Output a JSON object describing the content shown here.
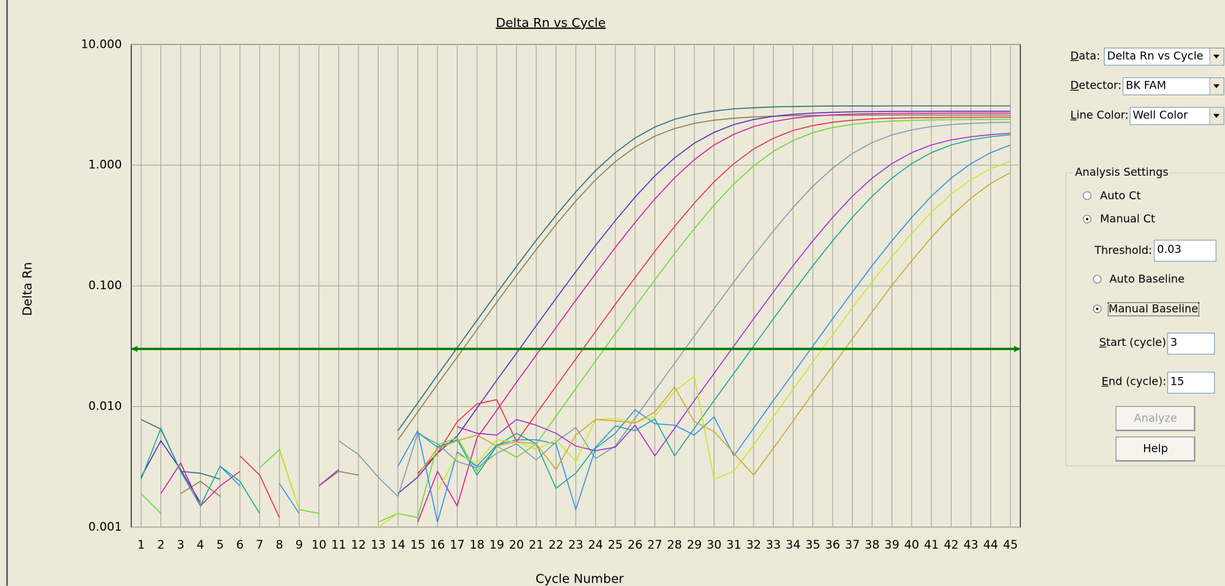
{
  "chart_data": {
    "type": "line",
    "title": "Delta Rn vs Cycle",
    "x_label": "Cycle Number",
    "y_label": "Delta Rn",
    "log_y": true,
    "grid": true,
    "x": [
      1,
      2,
      3,
      4,
      5,
      6,
      7,
      8,
      9,
      10,
      11,
      12,
      13,
      14,
      15,
      16,
      17,
      18,
      19,
      20,
      21,
      22,
      23,
      24,
      25,
      26,
      27,
      28,
      29,
      30,
      31,
      32,
      33,
      34,
      35,
      36,
      37,
      38,
      39,
      40,
      41,
      42,
      43,
      44,
      45
    ],
    "xlim": [
      0.5,
      45.5
    ],
    "xticks": [
      1,
      2,
      3,
      4,
      5,
      6,
      7,
      8,
      9,
      10,
      11,
      12,
      13,
      14,
      15,
      16,
      17,
      18,
      19,
      20,
      21,
      22,
      23,
      24,
      25,
      26,
      27,
      28,
      29,
      30,
      31,
      32,
      33,
      34,
      35,
      36,
      37,
      38,
      39,
      40,
      41,
      42,
      43,
      44,
      45
    ],
    "ylim": [
      0.001,
      10
    ],
    "yticks": [
      0.001,
      {
        "value": 0.01,
        "label": "0.010"
      },
      {
        "value": 0.1,
        "label": "0.100"
      },
      {
        "value": 1,
        "label": "1.000"
      },
      {
        "value": 10,
        "label": "10.000"
      }
    ],
    "threshold_color": "#008000",
    "series": [
      {
        "color": "#2e6b7e",
        "values": [
          0.0078,
          0.0065,
          0.0029,
          0.0028,
          0.0025,
          null,
          null,
          null,
          null,
          null,
          null,
          null,
          null,
          0.0063,
          0.0107,
          0.0182,
          0.0307,
          0.0518,
          0.0871,
          0.145,
          0.239,
          0.384,
          0.601,
          0.902,
          1.27,
          1.68,
          2.07,
          2.4,
          2.64,
          2.81,
          2.93,
          2.99,
          3.04,
          3.06,
          3.08,
          3.09,
          3.09,
          3.09,
          3.1,
          3.1,
          3.1,
          3.1,
          3.1,
          3.1,
          3.1
        ]
      },
      {
        "color": "#8c7d55",
        "values": [
          null,
          null,
          0.0019,
          0.0024,
          0.0018,
          null,
          null,
          null,
          null,
          0.0022,
          0.0029,
          0.0027,
          null,
          0.0053,
          0.009,
          0.0153,
          0.0257,
          0.0434,
          0.0731,
          0.122,
          0.2,
          0.322,
          0.504,
          0.757,
          1.07,
          1.41,
          1.74,
          2.01,
          2.22,
          2.36,
          2.45,
          2.51,
          2.55,
          2.57,
          2.58,
          2.59,
          2.59,
          2.6,
          2.6,
          2.6,
          2.6,
          2.6,
          2.6,
          2.6,
          2.6
        ]
      },
      {
        "color": "#5a2dc8",
        "values": [
          0.0026,
          0.0052,
          0.003,
          0.0016,
          null,
          null,
          null,
          null,
          null,
          null,
          null,
          null,
          null,
          0.0019,
          0.0026,
          0.0041,
          0.0057,
          0.0097,
          0.0165,
          0.0277,
          0.0468,
          0.0787,
          0.131,
          0.216,
          0.347,
          0.543,
          0.815,
          1.15,
          1.52,
          1.87,
          2.17,
          2.39,
          2.54,
          2.64,
          2.7,
          2.74,
          2.77,
          2.78,
          2.79,
          2.79,
          2.79,
          2.8,
          2.8,
          2.8,
          2.8
        ]
      },
      {
        "color": "#d020a0",
        "values": [
          null,
          0.0019,
          0.0034,
          0.0015,
          0.0022,
          0.0029,
          null,
          null,
          null,
          null,
          null,
          null,
          null,
          null,
          0.0011,
          0.0029,
          0.0015,
          0.0055,
          0.0093,
          0.0159,
          0.0267,
          0.0451,
          0.0759,
          0.126,
          0.208,
          0.335,
          0.524,
          0.786,
          1.11,
          1.47,
          1.8,
          2.09,
          2.3,
          2.45,
          2.55,
          2.61,
          2.65,
          2.67,
          2.68,
          2.69,
          2.69,
          2.7,
          2.7,
          2.7,
          2.7
        ]
      },
      {
        "color": "#e8304a",
        "values": [
          null,
          null,
          null,
          null,
          null,
          0.0039,
          0.0027,
          0.0012,
          null,
          null,
          null,
          null,
          null,
          null,
          0.0028,
          0.0041,
          0.0075,
          0.0105,
          0.0114,
          0.0051,
          0.0087,
          0.0147,
          0.0248,
          0.0418,
          0.0703,
          0.117,
          0.193,
          0.31,
          0.485,
          0.728,
          1.03,
          1.36,
          1.67,
          1.94,
          2.13,
          2.27,
          2.36,
          2.42,
          2.45,
          2.47,
          2.48,
          2.49,
          2.49,
          2.5,
          2.5
        ]
      },
      {
        "color": "#6ad838",
        "values": [
          0.0019,
          0.0013,
          null,
          null,
          null,
          null,
          0.0031,
          0.0044,
          0.0014,
          0.0013,
          null,
          null,
          0.0011,
          0.0013,
          0.0012,
          0.0048,
          0.0055,
          0.0029,
          0.0047,
          0.0038,
          0.0049,
          0.0083,
          0.0141,
          0.0238,
          0.0401,
          0.0674,
          0.112,
          0.185,
          0.298,
          0.466,
          0.699,
          0.986,
          1.3,
          1.6,
          1.86,
          2.05,
          2.18,
          2.27,
          2.32,
          2.35,
          2.37,
          2.38,
          2.39,
          2.39,
          2.4
        ]
      },
      {
        "color": "#7f9cb0",
        "values": [
          null,
          null,
          null,
          null,
          null,
          null,
          null,
          null,
          null,
          null,
          0.0052,
          0.004,
          0.0026,
          0.0018,
          0.006,
          0.0049,
          0.0035,
          0.0031,
          0.0041,
          0.0049,
          0.0036,
          0.0051,
          0.0067,
          0.0037,
          0.0047,
          0.008,
          0.0135,
          0.0228,
          0.0384,
          0.0646,
          0.108,
          0.177,
          0.285,
          0.446,
          0.669,
          0.945,
          1.25,
          1.54,
          1.78,
          1.96,
          2.09,
          2.17,
          2.22,
          2.25,
          2.27
        ]
      },
      {
        "color": "#a030d0",
        "values": [
          null,
          null,
          null,
          null,
          null,
          null,
          null,
          null,
          null,
          0.0022,
          0.003,
          null,
          null,
          null,
          null,
          null,
          0.0068,
          0.006,
          0.0058,
          0.0078,
          0.007,
          0.006,
          0.0047,
          0.0043,
          0.0046,
          0.007,
          0.0039,
          0.0066,
          0.0112,
          0.0188,
          0.0317,
          0.0533,
          0.0889,
          0.147,
          0.236,
          0.369,
          0.553,
          0.781,
          1.03,
          1.27,
          1.47,
          1.62,
          1.72,
          1.79,
          1.84
        ]
      },
      {
        "color": "#18a898",
        "values": [
          0.0025,
          0.0066,
          0.0029,
          0.0015,
          0.0032,
          0.0024,
          0.0013,
          null,
          null,
          null,
          null,
          null,
          null,
          null,
          0.0061,
          0.0046,
          0.0053,
          0.0027,
          0.0047,
          0.006,
          0.0049,
          0.0021,
          0.0028,
          0.0046,
          0.0069,
          0.0063,
          0.0079,
          0.0039,
          0.0066,
          0.0112,
          0.0188,
          0.0317,
          0.0533,
          0.0889,
          0.147,
          0.236,
          0.369,
          0.553,
          0.781,
          1.03,
          1.27,
          1.47,
          1.62,
          1.72,
          1.79
        ]
      },
      {
        "color": "#3090e8",
        "values": [
          null,
          null,
          null,
          null,
          0.0032,
          0.0022,
          null,
          0.0023,
          0.0013,
          null,
          null,
          null,
          null,
          0.0032,
          0.0063,
          0.0011,
          0.0042,
          0.0032,
          0.0048,
          0.0053,
          0.0053,
          0.0049,
          0.0014,
          0.0045,
          0.006,
          0.0094,
          0.0072,
          0.007,
          0.0058,
          0.0082,
          0.0039,
          0.0066,
          0.0112,
          0.0188,
          0.0317,
          0.0533,
          0.0889,
          0.147,
          0.236,
          0.369,
          0.553,
          0.781,
          1.03,
          1.27,
          1.47
        ]
      },
      {
        "color": "#c8e828",
        "values": [
          null,
          null,
          null,
          null,
          null,
          null,
          null,
          0.0043,
          0.0014,
          null,
          null,
          null,
          0.001,
          0.0013,
          null,
          0.002,
          0.004,
          0.0034,
          0.0053,
          0.0051,
          0.0044,
          0.0053,
          0.0035,
          0.0078,
          0.008,
          0.0074,
          0.0083,
          0.0133,
          0.0178,
          0.0025,
          0.0029,
          0.0048,
          0.0082,
          0.0139,
          0.0234,
          0.0393,
          0.0655,
          0.108,
          0.174,
          0.272,
          0.407,
          0.575,
          0.76,
          0.936,
          1.08
        ]
      },
      {
        "color": "#c8a830",
        "values": [
          null,
          null,
          null,
          null,
          null,
          null,
          null,
          null,
          null,
          null,
          null,
          null,
          null,
          null,
          0.0027,
          0.0045,
          0.0052,
          0.0058,
          0.0047,
          0.0051,
          0.0049,
          0.003,
          0.0058,
          0.0078,
          0.0076,
          0.0073,
          0.009,
          0.0145,
          0.0075,
          0.0062,
          0.0041,
          0.0027,
          0.0045,
          0.0076,
          0.0129,
          0.0217,
          0.0365,
          0.0608,
          0.101,
          0.161,
          0.252,
          0.378,
          0.534,
          0.706,
          0.868
        ]
      }
    ]
  },
  "panel": {
    "data_label": "Data:",
    "data_value": "Delta Rn vs Cycle",
    "detector_label": "Detector:",
    "detector_value": "BK FAM",
    "line_color_label": "Line Color:",
    "line_color_value": "Well Color",
    "group_title": "Analysis Settings",
    "auto_ct": "Auto Ct",
    "manual_ct": "Manual Ct",
    "threshold_label": "Threshold:",
    "threshold": 0.03,
    "auto_baseline": "Auto Baseline",
    "manual_baseline": "Manual Baseline",
    "start_label": "Start (cycle):",
    "start": 3,
    "end_label": "End (cycle):",
    "end": 15,
    "analyze": "Analyze",
    "help": "Help"
  }
}
